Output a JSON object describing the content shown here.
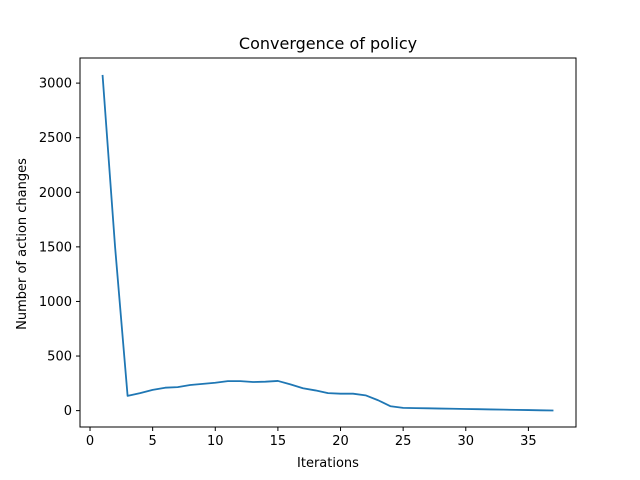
{
  "chart_data": {
    "type": "line",
    "title": "Convergence of policy",
    "xlabel": "Iterations",
    "ylabel": "Number of action changes",
    "xlim": [
      -0.8,
      38.8
    ],
    "ylim": [
      -150,
      3230
    ],
    "xticks": [
      0,
      5,
      10,
      15,
      20,
      25,
      30,
      35
    ],
    "yticks": [
      0,
      500,
      1000,
      1500,
      2000,
      2500,
      3000
    ],
    "grid": false,
    "legend": "none",
    "series": [
      {
        "color": "#1f77b4",
        "x": [
          1,
          2,
          3,
          4,
          5,
          6,
          7,
          8,
          9,
          10,
          11,
          12,
          13,
          14,
          15,
          16,
          17,
          18,
          19,
          20,
          21,
          22,
          23,
          24,
          25,
          26,
          27,
          28,
          29,
          30,
          31,
          32,
          33,
          34,
          35,
          36,
          37
        ],
        "values": [
          3075,
          1500,
          135,
          160,
          190,
          210,
          215,
          235,
          245,
          255,
          270,
          270,
          262,
          265,
          272,
          240,
          205,
          185,
          160,
          155,
          155,
          140,
          95,
          40,
          25,
          23,
          21,
          19,
          17,
          15,
          13,
          11,
          9,
          7,
          5,
          3,
          1
        ]
      }
    ]
  }
}
